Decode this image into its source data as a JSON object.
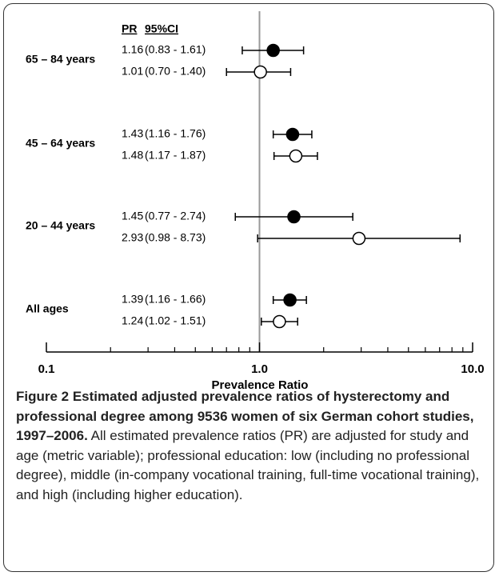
{
  "chart_data": {
    "type": "forest",
    "headers": [
      "PR",
      "95%CI"
    ],
    "groups": [
      "65 – 84 years",
      "45 – 64 years",
      "20 – 44 years",
      "All ages"
    ],
    "series": [
      {
        "fill": "#000000",
        "values": [
          1.16,
          1.43,
          1.45,
          1.39
        ],
        "lower": [
          0.83,
          1.16,
          0.77,
          1.16
        ],
        "upper": [
          1.61,
          1.76,
          2.74,
          1.66
        ],
        "ci_labels": [
          "(0.83 - 1.61)",
          "(1.16 - 1.76)",
          "(0.77 - 2.74)",
          "(1.16 - 1.66)"
        ]
      },
      {
        "fill": "#ffffff",
        "values": [
          1.01,
          1.48,
          2.93,
          1.24
        ],
        "lower": [
          0.7,
          1.17,
          0.98,
          1.02
        ],
        "upper": [
          1.4,
          1.87,
          8.73,
          1.51
        ],
        "ci_labels": [
          "(0.70 - 1.40)",
          "(1.17 - 1.87)",
          "(0.98 - 8.73)",
          "(1.02 - 1.51)"
        ]
      }
    ],
    "x_label": "Prevalence Ratio",
    "log_x": true,
    "xlim": [
      0.1,
      10
    ],
    "xticks": [
      0.1,
      {
        "value": 1,
        "label": "1.0"
      },
      {
        "value": 10,
        "label": "10.0"
      }
    ],
    "xminorticks": [
      0.2,
      0.3,
      0.4,
      0.5,
      0.6,
      0.7,
      0.8,
      0.9,
      2,
      3,
      4,
      5,
      6,
      7,
      8,
      9
    ],
    "reference_line": 1
  },
  "caption": {
    "title": "Figure 2 Estimated adjusted prevalence ratios of hysterectomy and professional degree among 9536 women of six German cohort studies, 1997–2006.",
    "text": "All estimated prevalence ratios (PR) are adjusted for study and age (metric variable); professional education: low (including no professional degree), middle (in-company vocational training, full-time vocational training), and high (including higher education)."
  }
}
